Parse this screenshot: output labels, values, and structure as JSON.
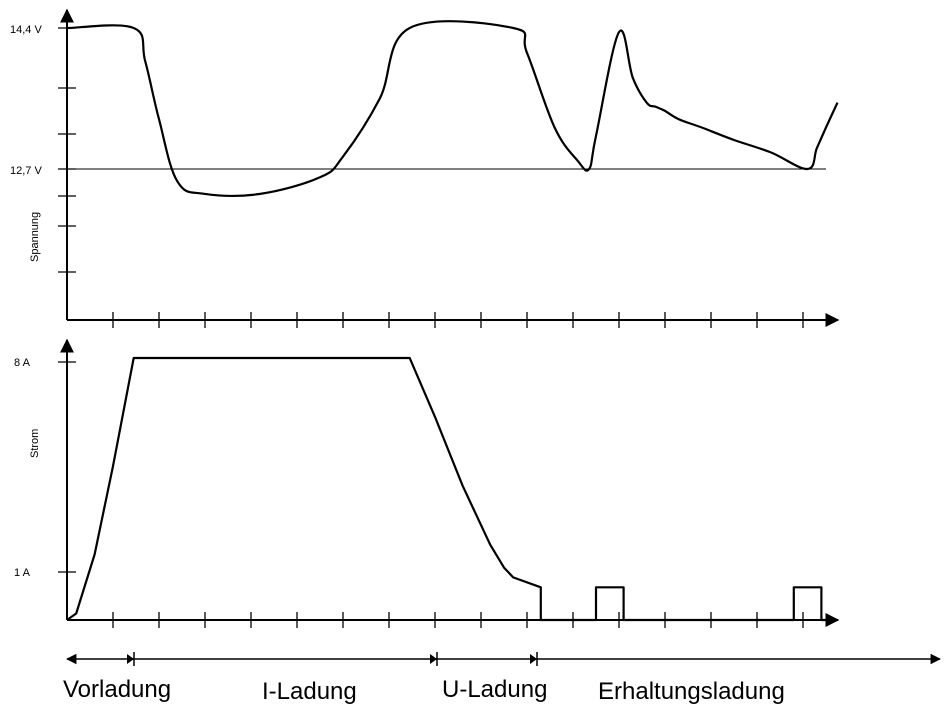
{
  "chart_data": [
    {
      "type": "line",
      "ylabel": "Spannung",
      "y_tick_labels": [
        "14,4 V",
        "12,7 V"
      ],
      "reference_line": 12.7,
      "series": [
        {
          "x": [
            0,
            1.45,
            1.7,
            2.0,
            2.4,
            3.0,
            4.2,
            5.5,
            6.0,
            6.8,
            7.45,
            9.7,
            10.0,
            10.6,
            11.1,
            11.35,
            11.5,
            12.0,
            12.3,
            12.6,
            12.8,
            13.0,
            13.3,
            13.8,
            14.5,
            15.3,
            16.1,
            16.3,
            16.5,
            16.75
          ],
          "y": [
            14.4,
            14.4,
            14.0,
            13.3,
            12.55,
            12.4,
            12.4,
            12.6,
            12.85,
            13.55,
            14.4,
            14.4,
            14.1,
            13.2,
            12.8,
            12.7,
            13.1,
            14.35,
            13.8,
            13.5,
            13.45,
            13.4,
            13.3,
            13.2,
            13.05,
            12.9,
            12.7,
            12.95,
            13.2,
            13.5
          ]
        }
      ]
    },
    {
      "type": "line",
      "ylabel": "Strom",
      "y_tick_labels": [
        "8 A",
        "1 A"
      ],
      "series": [
        {
          "x": [
            0,
            0.2,
            0.6,
            1.0,
            1.45,
            7.45,
            8.0,
            8.6,
            9.2,
            9.5,
            9.7,
            10.3,
            10.3,
            10.35,
            11.5,
            11.5,
            12.1,
            12.1,
            15.8,
            15.8,
            16.4,
            16.4,
            16.5
          ],
          "y": [
            0,
            0.2,
            2.0,
            4.7,
            8,
            8,
            6.2,
            4.1,
            2.3,
            1.6,
            1.3,
            1,
            0,
            0,
            0,
            1,
            1,
            0,
            0,
            1,
            1,
            0,
            0
          ]
        }
      ]
    }
  ],
  "phases": [
    "Vorladung",
    "I-Ladung",
    "U-Ladung",
    "Erhaltungsladung"
  ]
}
